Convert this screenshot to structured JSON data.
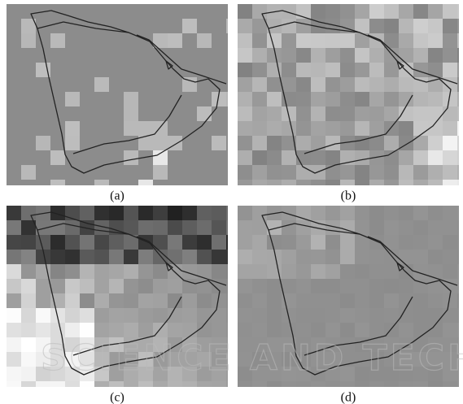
{
  "panels": [
    {
      "label": "(a)"
    },
    {
      "label": "(b)"
    },
    {
      "label": "(c)"
    },
    {
      "label": "(d)"
    }
  ],
  "watermark": "SCIENCE AND TECH"
}
